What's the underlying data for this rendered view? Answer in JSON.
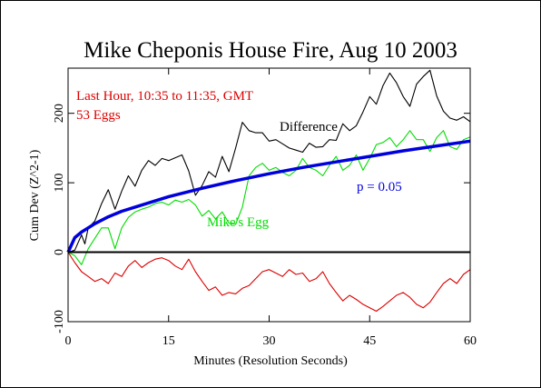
{
  "chart_data": {
    "type": "line",
    "title": "Mike Cheponis House Fire, Aug 10 2003",
    "xlabel": "Minutes (Resolution Seconds)",
    "ylabel": "Cum Dev (Z^2-1)",
    "xlim": [
      0,
      60
    ],
    "ylim": [
      -100,
      265
    ],
    "xticks": [
      0,
      15,
      30,
      45,
      60
    ],
    "yticks": [
      -100,
      0,
      100,
      200
    ],
    "grid": false,
    "annotations": {
      "line1": "Last Hour, 10:35 to 11:35, GMT",
      "line2": "53 Eggs",
      "difference": "Difference",
      "mikes_egg": "Mike's Egg",
      "p_value": "p = 0.05"
    },
    "series": [
      {
        "name": "Difference",
        "color": "#000000",
        "x": [
          0,
          1,
          2,
          2.5,
          3,
          4,
          5,
          6,
          7,
          8,
          9,
          10,
          11,
          12,
          13,
          14,
          15,
          16,
          17,
          18,
          19,
          20,
          21,
          22,
          23,
          24,
          25,
          26,
          27,
          28,
          29,
          30,
          31,
          32,
          33,
          34,
          35,
          36,
          37,
          38,
          39,
          40,
          41,
          42,
          43,
          44,
          45,
          46,
          47,
          48,
          49,
          50,
          51,
          52,
          53,
          54,
          55,
          56,
          57,
          58,
          59,
          60
        ],
        "y": [
          0,
          3,
          25,
          12,
          35,
          45,
          70,
          90,
          62,
          88,
          110,
          95,
          118,
          132,
          125,
          135,
          132,
          136,
          140,
          117,
          82,
          96,
          116,
          108,
          138,
          116,
          150,
          187,
          175,
          172,
          172,
          160,
          162,
          156,
          150,
          147,
          144,
          157,
          151,
          152,
          162,
          161,
          185,
          175,
          182,
          202,
          224,
          213,
          240,
          258,
          244,
          224,
          210,
          242,
          253,
          262,
          225,
          203,
          193,
          190,
          195,
          188
        ]
      },
      {
        "name": "Mike's Egg",
        "color": "#00dd00",
        "x": [
          0,
          1,
          2,
          3,
          4,
          5,
          6,
          7,
          8,
          9,
          10,
          11,
          12,
          13,
          14,
          15,
          16,
          17,
          18,
          19,
          20,
          21,
          22,
          23,
          24,
          25,
          26,
          27,
          28,
          29,
          30,
          31,
          32,
          33,
          34,
          35,
          36,
          37,
          38,
          39,
          40,
          41,
          42,
          43,
          44,
          45,
          46,
          47,
          48,
          49,
          50,
          51,
          52,
          53,
          54,
          55,
          56,
          57,
          58,
          59,
          60
        ],
        "y": [
          0,
          -5,
          -18,
          5,
          20,
          35,
          35,
          5,
          35,
          50,
          58,
          62,
          65,
          70,
          72,
          68,
          75,
          72,
          76,
          68,
          52,
          60,
          48,
          58,
          42,
          40,
          65,
          110,
          122,
          128,
          118,
          122,
          115,
          110,
          118,
          135,
          122,
          118,
          110,
          125,
          138,
          118,
          125,
          140,
          118,
          135,
          155,
          158,
          165,
          152,
          162,
          175,
          162,
          162,
          145,
          165,
          175,
          152,
          148,
          162,
          166
        ]
      },
      {
        "name": "",
        "color": "#dd0000",
        "x": [
          0,
          1,
          2,
          3,
          4,
          5,
          6,
          7,
          8,
          9,
          10,
          11,
          12,
          13,
          14,
          15,
          16,
          17,
          18,
          19,
          20,
          21,
          22,
          23,
          24,
          25,
          26,
          27,
          28,
          29,
          30,
          31,
          32,
          33,
          34,
          35,
          36,
          37,
          38,
          39,
          40,
          41,
          42,
          43,
          44,
          45,
          46,
          47,
          48,
          49,
          50,
          51,
          52,
          53,
          54,
          55,
          56,
          57,
          58,
          59,
          60
        ],
        "y": [
          0,
          -15,
          -28,
          -35,
          -42,
          -38,
          -45,
          -30,
          -35,
          -20,
          -12,
          -22,
          -15,
          -10,
          -8,
          -12,
          -20,
          -25,
          -10,
          -28,
          -42,
          -55,
          -50,
          -62,
          -58,
          -60,
          -52,
          -48,
          -38,
          -28,
          -25,
          -30,
          -35,
          -25,
          -32,
          -30,
          -42,
          -38,
          -28,
          -45,
          -58,
          -70,
          -62,
          -68,
          -75,
          -80,
          -85,
          -78,
          -70,
          -62,
          -58,
          -65,
          -75,
          -80,
          -72,
          -58,
          -45,
          -38,
          -45,
          -32,
          -25
        ]
      },
      {
        "name": "p = 0.05",
        "color": "#0000dd",
        "expression": "2.9 * sqrt(53 * seconds)",
        "x": [
          0,
          1,
          2,
          4,
          6,
          8,
          10,
          15,
          20,
          25,
          30,
          35,
          40,
          45,
          50,
          55,
          60
        ],
        "y": [
          0,
          21,
          29,
          41,
          51,
          59,
          65,
          80,
          92,
          103,
          113,
          122,
          130,
          138,
          146,
          153,
          160
        ]
      }
    ]
  }
}
